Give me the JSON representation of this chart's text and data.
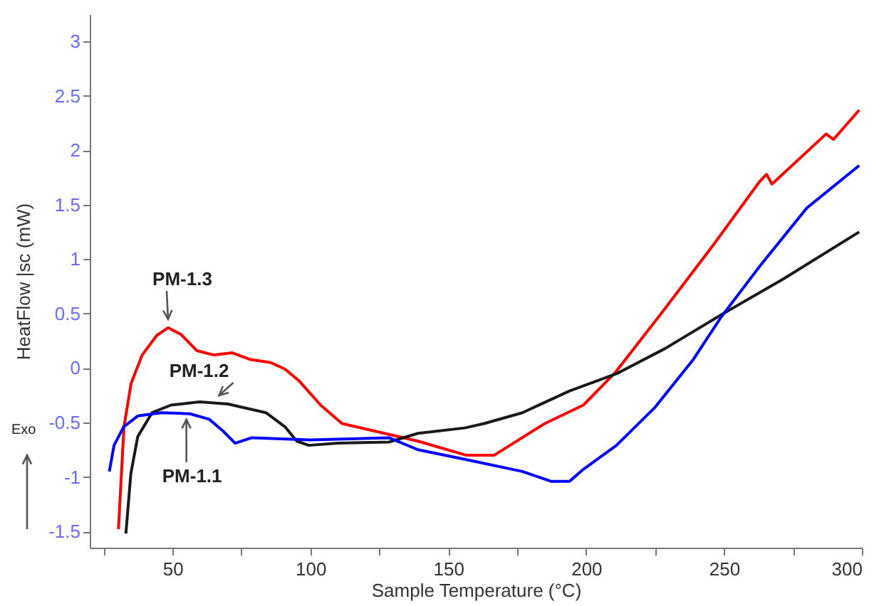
{
  "chart_data": {
    "type": "line",
    "xlabel": "Sample Temperature (°C)",
    "ylabel": "HeatFlow |sc (mW)",
    "xlim": [
      20,
      300
    ],
    "ylim": [
      -1.65,
      3.25
    ],
    "xticks": [
      {
        "value": 25,
        "label": null
      },
      50,
      {
        "value": 75,
        "label": null
      },
      100,
      {
        "value": 125,
        "label": null
      },
      150,
      {
        "value": 175,
        "label": null
      },
      200,
      {
        "value": 225,
        "label": null
      },
      250,
      {
        "value": 275,
        "label": null
      },
      300
    ],
    "yticks": [
      -1.5,
      -1,
      -0.5,
      0,
      0.5,
      1,
      1.5,
      2,
      2.5,
      3
    ],
    "annotations": [
      {
        "text": "PM-1.3",
        "x": 48.4,
        "y": 0.37
      },
      {
        "text": "PM-1.2",
        "x": 70,
        "y": -0.33
      },
      {
        "text": "PM-1.1",
        "x": 54,
        "y": -0.42
      },
      "Exo"
    ],
    "series": [
      {
        "color": "#ff0000",
        "x": [
          30.4,
          32.4,
          35,
          39,
          44.3,
          48.4,
          53,
          58.8,
          65,
          71.7,
          78,
          85.6,
          90.8,
          96,
          103.7,
          111.5,
          121.8,
          138.8,
          156.4,
          166.7,
          185,
          199,
          210.6,
          228.7,
          245.8,
          262.8,
          265.4,
          267.4,
          287,
          289.7,
          299
        ],
        "values": [
          -1.48,
          -0.54,
          -0.14,
          0.12,
          0.3,
          0.37,
          0.31,
          0.16,
          0.12,
          0.14,
          0.08,
          0.05,
          -0.01,
          -0.12,
          -0.34,
          -0.51,
          -0.57,
          -0.67,
          -0.8,
          -0.8,
          -0.51,
          -0.34,
          -0.04,
          0.55,
          1.12,
          1.71,
          1.78,
          1.69,
          2.15,
          2.1,
          2.37
        ]
      },
      {
        "color": "#1a1a1a",
        "x": [
          33.1,
          34.9,
          37.4,
          42.6,
          49.5,
          59.8,
          70.1,
          83.9,
          90.8,
          95,
          99.4,
          110,
          128.5,
          139,
          156,
          163,
          176.9,
          194,
          211.2,
          228.7,
          249,
          271.6,
          299
        ],
        "values": [
          -1.52,
          -0.97,
          -0.63,
          -0.41,
          -0.34,
          -0.31,
          -0.33,
          -0.41,
          -0.54,
          -0.67,
          -0.71,
          -0.69,
          -0.68,
          -0.6,
          -0.55,
          -0.51,
          -0.41,
          -0.21,
          -0.05,
          0.18,
          0.49,
          0.82,
          1.25
        ]
      },
      {
        "color": "#0000ff",
        "x": [
          27.1,
          28.8,
          32.3,
          37.4,
          46,
          56.3,
          63.3,
          68.4,
          72.7,
          78.8,
          100,
          128.5,
          139,
          156.3,
          176.9,
          187.2,
          194,
          199,
          211,
          225,
          238.9,
          249,
          262.8,
          280,
          299
        ],
        "values": [
          -0.95,
          -0.71,
          -0.54,
          -0.44,
          -0.41,
          -0.42,
          -0.47,
          -0.58,
          -0.69,
          -0.64,
          -0.66,
          -0.64,
          -0.75,
          -0.84,
          -0.95,
          -1.04,
          -1.04,
          -0.93,
          -0.71,
          -0.36,
          0.08,
          0.47,
          0.93,
          1.47,
          1.86
        ]
      }
    ]
  }
}
